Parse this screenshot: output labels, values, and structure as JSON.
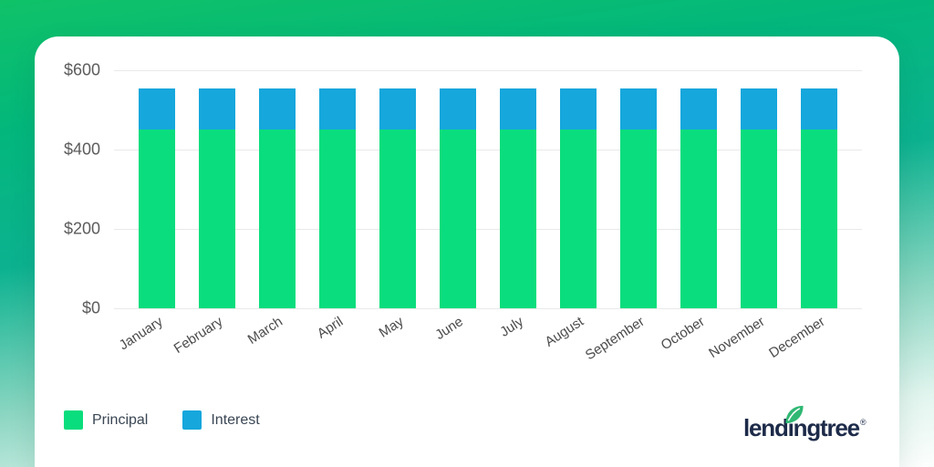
{
  "chart_data": {
    "type": "bar",
    "stacked": true,
    "title": "",
    "xlabel": "",
    "ylabel": "",
    "categories": [
      "January",
      "February",
      "March",
      "April",
      "May",
      "June",
      "July",
      "August",
      "September",
      "October",
      "November",
      "December"
    ],
    "series": [
      {
        "name": "Principal",
        "color": "#0ADD7D",
        "values": [
          450,
          450,
          450,
          450,
          450,
          450,
          450,
          450,
          450,
          450,
          450,
          450
        ]
      },
      {
        "name": "Interest",
        "color": "#16A7DC",
        "values": [
          105,
          105,
          105,
          105,
          105,
          105,
          105,
          105,
          105,
          105,
          105,
          105
        ]
      }
    ],
    "ylim": [
      0,
      600
    ],
    "yticks": [
      {
        "label": "$600",
        "value": 600
      },
      {
        "label": "$400",
        "value": 400
      },
      {
        "label": "$200",
        "value": 200
      },
      {
        "label": "$0",
        "value": 0
      }
    ],
    "grid": true,
    "legend_position": "bottom-left"
  },
  "logo": {
    "text": "lendingtree",
    "registered": "®",
    "color": "#1D2B49",
    "leaf_color": "#2FB873"
  },
  "colors": {
    "background_top": "#0FC268",
    "background_mid": "#0CB290",
    "background_bottom": "#FCFEFD",
    "card": "#FFFFFF",
    "gridline": "#E9E9E9",
    "axis_text": "#5C5C5C",
    "month_text": "#4B4B4B",
    "legend_text": "#3A4654"
  }
}
